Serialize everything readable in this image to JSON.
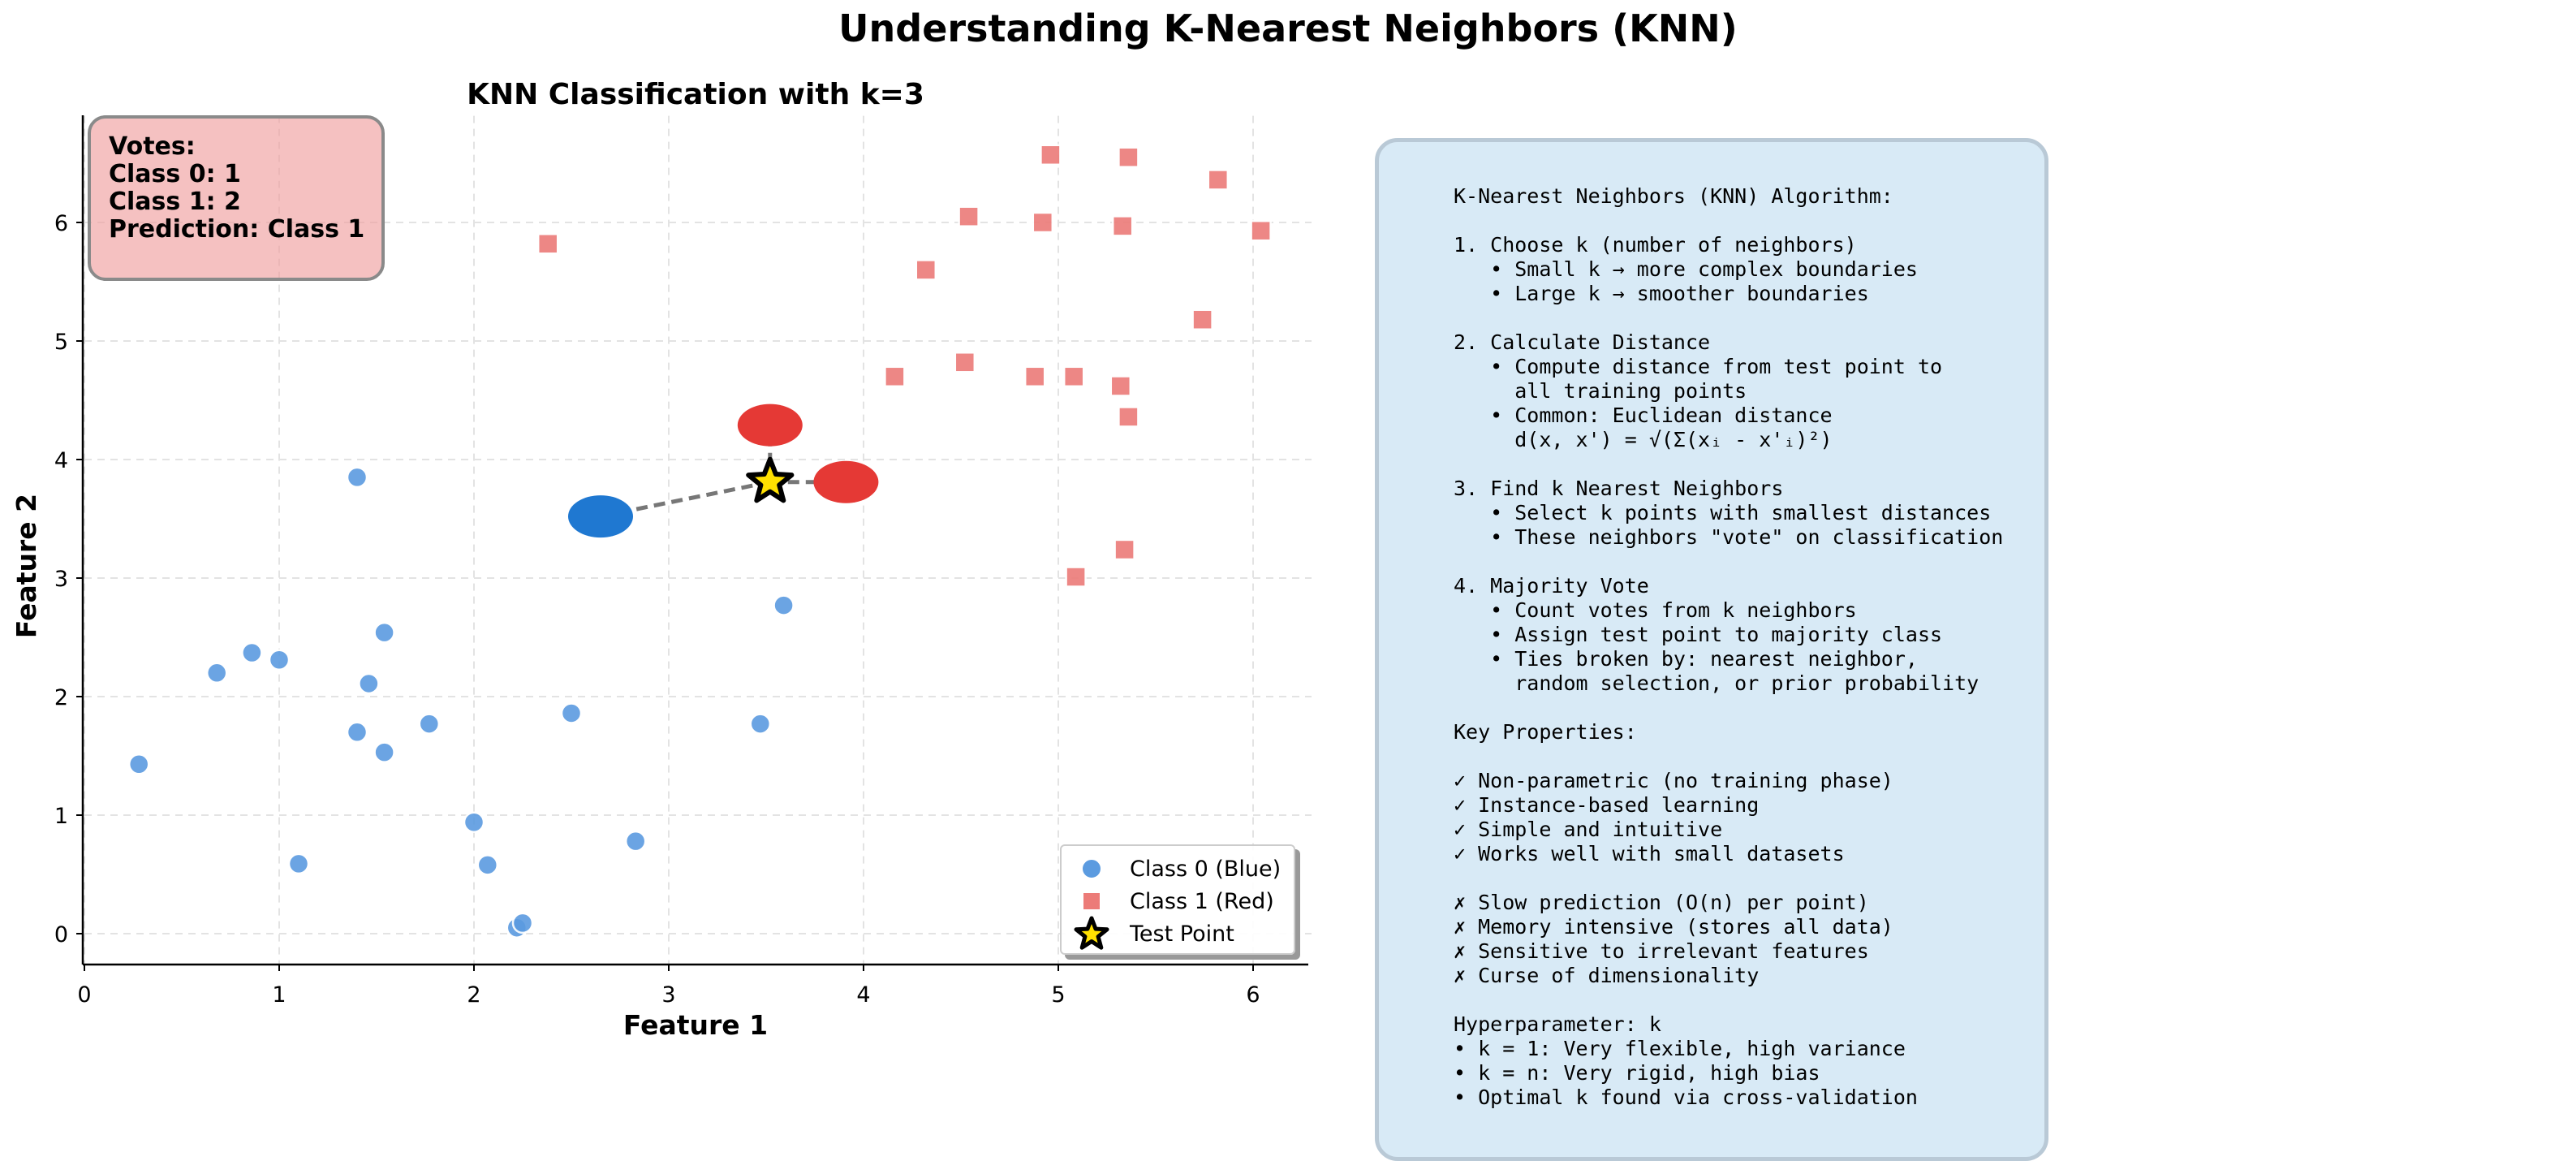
{
  "figure_title": "Understanding K-Nearest Neighbors (KNN)",
  "chart_data": {
    "type": "scatter",
    "title": "KNN Classification with k=3",
    "xlabel": "Feature 1",
    "ylabel": "Feature 2",
    "xlim": [
      0,
      6.3
    ],
    "ylim": [
      -0.28,
      6.9
    ],
    "xticks": [
      0,
      1,
      2,
      3,
      4,
      5,
      6
    ],
    "yticks": [
      0,
      1,
      2,
      3,
      4,
      5,
      6
    ],
    "grid": true,
    "legend_position": "lower-right",
    "series": [
      {
        "name": "Class 0 (Blue)",
        "marker": "circle",
        "color": "#5b9be0",
        "points": [
          [
            0.28,
            1.43
          ],
          [
            0.68,
            2.2
          ],
          [
            0.86,
            2.37
          ],
          [
            1.0,
            2.31
          ],
          [
            1.1,
            0.59
          ],
          [
            1.4,
            3.85
          ],
          [
            1.4,
            1.7
          ],
          [
            1.46,
            2.11
          ],
          [
            1.54,
            2.54
          ],
          [
            1.54,
            1.53
          ],
          [
            1.77,
            1.77
          ],
          [
            2.0,
            0.94
          ],
          [
            2.07,
            0.58
          ],
          [
            2.22,
            0.05
          ],
          [
            2.25,
            0.09
          ],
          [
            2.5,
            1.86
          ],
          [
            2.83,
            0.78
          ],
          [
            3.47,
            1.77
          ],
          [
            3.59,
            2.77
          ]
        ]
      },
      {
        "name": "Class 1 (Red)",
        "marker": "square",
        "color": "#ec7b78",
        "points": [
          [
            2.38,
            5.82
          ],
          [
            4.16,
            4.7
          ],
          [
            4.32,
            5.6
          ],
          [
            4.52,
            4.82
          ],
          [
            4.54,
            6.05
          ],
          [
            4.88,
            4.7
          ],
          [
            4.92,
            6.0
          ],
          [
            4.96,
            6.57
          ],
          [
            5.08,
            4.7
          ],
          [
            5.09,
            3.01
          ],
          [
            5.32,
            4.62
          ],
          [
            5.33,
            5.97
          ],
          [
            5.34,
            3.24
          ],
          [
            5.36,
            4.36
          ],
          [
            5.36,
            6.55
          ],
          [
            5.74,
            5.18
          ],
          [
            5.82,
            6.36
          ],
          [
            6.04,
            5.93
          ]
        ]
      }
    ],
    "test_point": {
      "name": "Test Point",
      "x": 3.52,
      "y": 3.81,
      "marker": "star",
      "color": "#ffe000"
    },
    "neighbors": [
      {
        "x": 2.65,
        "y": 3.52,
        "class": 0,
        "color": "#1f78d1"
      },
      {
        "x": 3.52,
        "y": 4.29,
        "class": 1,
        "color": "#e53935"
      },
      {
        "x": 3.91,
        "y": 3.81,
        "class": 1,
        "color": "#e53935"
      }
    ]
  },
  "votes_box": {
    "line1": "Votes:",
    "line2": "Class 0: 1",
    "line3": "Class 1: 2",
    "line4": "",
    "line5": "Prediction: Class 1"
  },
  "legend": {
    "class0": "Class 0 (Blue)",
    "class1": "Class 1 (Red)",
    "test": "Test Point"
  },
  "info_text": "K-Nearest Neighbors (KNN) Algorithm:\n\n1. Choose k (number of neighbors)\n   • Small k → more complex boundaries\n   • Large k → smoother boundaries\n\n2. Calculate Distance\n   • Compute distance from test point to\n     all training points\n   • Common: Euclidean distance\n     d(x, x') = √(Σ(xᵢ - x'ᵢ)²)\n\n3. Find k Nearest Neighbors\n   • Select k points with smallest distances\n   • These neighbors \"vote\" on classification\n\n4. Majority Vote\n   • Count votes from k neighbors\n   • Assign test point to majority class\n   • Ties broken by: nearest neighbor,\n     random selection, or prior probability\n\nKey Properties:\n\n✓ Non-parametric (no training phase)\n✓ Instance-based learning\n✓ Simple and intuitive\n✓ Works well with small datasets\n\n✗ Slow prediction (O(n) per point)\n✗ Memory intensive (stores all data)\n✗ Sensitive to irrelevant features\n✗ Curse of dimensionality\n\nHyperparameter: k\n• k = 1: Very flexible, high variance\n• k = n: Very rigid, high bias\n• Optimal k found via cross-validation",
  "colors": {
    "class0": "#5b9be0",
    "class1": "#ec7b78",
    "neighbor0": "#1f78d1",
    "neighbor1": "#e53935",
    "test_star": "#ffe000",
    "info_bg": "#d8eaf6",
    "votes_bg": "#f0a0a0"
  }
}
